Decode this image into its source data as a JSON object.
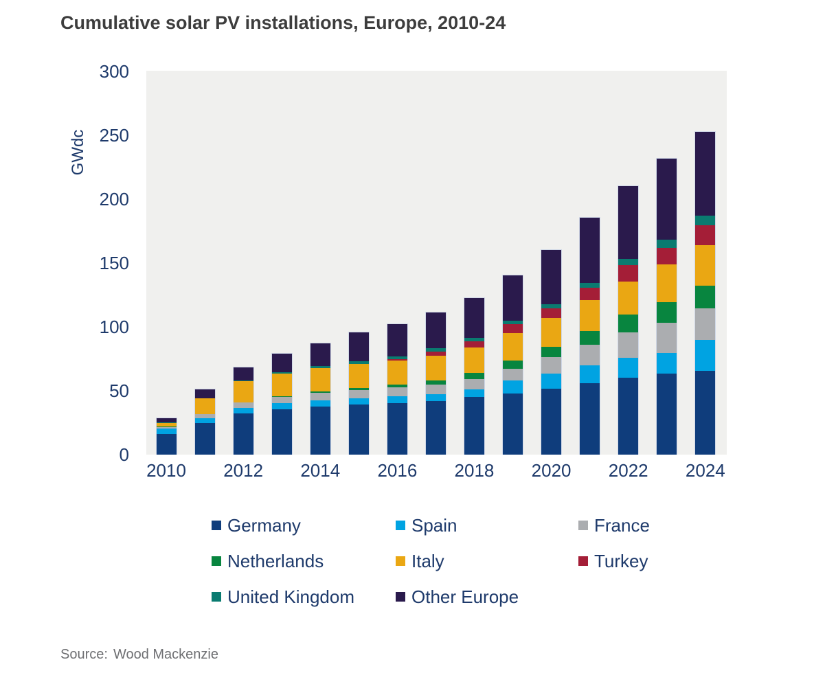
{
  "title": "Cumulative solar PV installations, Europe, 2010-24",
  "source": {
    "label": "Source:",
    "value": "Wood Mackenzie"
  },
  "chart_data": {
    "type": "bar",
    "stacked": true,
    "title": "Cumulative solar PV installations, Europe, 2010-24",
    "xlabel": "",
    "ylabel": "GWdc",
    "ylim": [
      0,
      300
    ],
    "yticks": [
      0,
      50,
      100,
      150,
      200,
      250,
      300
    ],
    "grid": false,
    "plot_background": "#f0f0ee",
    "legend_position": "bottom",
    "text_color": "#1e3a6b",
    "categories": [
      "2010",
      "2011",
      "2012",
      "2013",
      "2014",
      "2015",
      "2016",
      "2017",
      "2018",
      "2019",
      "2020",
      "2021",
      "2022",
      "2023",
      "2024"
    ],
    "xtick_labels": [
      "2010",
      "2012",
      "2014",
      "2016",
      "2018",
      "2020",
      "2022",
      "2024"
    ],
    "units": "GWdc",
    "series": [
      {
        "name": "Germany",
        "color": "#0f3d7c",
        "values": [
          16.5,
          24.8,
          32.4,
          35.9,
          37.9,
          39.2,
          40.7,
          42.3,
          45.2,
          48.0,
          52.0,
          55.9,
          60.1,
          63.5,
          66.0
        ]
      },
      {
        "name": "Spain",
        "color": "#00a3e2",
        "values": [
          4.3,
          4.1,
          4.6,
          4.8,
          4.9,
          4.9,
          5.0,
          5.2,
          5.9,
          10.2,
          11.6,
          14.4,
          16.0,
          16.5,
          24.0
        ]
      },
      {
        "name": "France",
        "color": "#abadb0",
        "values": [
          1.3,
          2.9,
          4.0,
          4.7,
          5.7,
          6.6,
          7.1,
          7.7,
          8.5,
          9.5,
          13.1,
          16.2,
          19.7,
          23.6,
          25.0
        ]
      },
      {
        "name": "Netherlands",
        "color": "#08853f",
        "values": [
          0.1,
          0.2,
          0.4,
          0.7,
          1.1,
          1.5,
          2.1,
          2.9,
          4.5,
          6.3,
          7.9,
          10.7,
          14.0,
          16.1,
          17.5
        ]
      },
      {
        "name": "Italy",
        "color": "#eaa713",
        "values": [
          3.2,
          12.5,
          16.4,
          17.6,
          18.5,
          18.9,
          19.3,
          19.7,
          20.1,
          21.5,
          22.6,
          24.2,
          26.3,
          29.6,
          32.0
        ]
      },
      {
        "name": "Turkey",
        "color": "#a41e37",
        "values": [
          0.0,
          0.0,
          0.1,
          0.2,
          0.3,
          0.5,
          1.0,
          3.4,
          5.1,
          6.8,
          7.8,
          9.5,
          12.5,
          13.1,
          15.5
        ]
      },
      {
        "name": "United Kingdom",
        "color": "#0a7b70",
        "values": [
          0.1,
          0.2,
          0.9,
          1.3,
          1.6,
          1.9,
          2.1,
          2.3,
          2.5,
          2.7,
          2.9,
          4.0,
          4.8,
          6.3,
          7.5
        ]
      },
      {
        "name": "Other Europe",
        "color": "#2a1a4c",
        "values": [
          3.5,
          6.8,
          10.2,
          14.5,
          17.5,
          23.0,
          25.5,
          28.5,
          31.2,
          36.0,
          43.1,
          51.1,
          57.6,
          63.3,
          65.5
        ]
      }
    ],
    "totals": [
      29.0,
      51.5,
      69.0,
      79.7,
      87.5,
      96.5,
      102.8,
      112.0,
      123.0,
      141.0,
      161.0,
      186.0,
      211.0,
      232.0,
      253.0
    ]
  }
}
